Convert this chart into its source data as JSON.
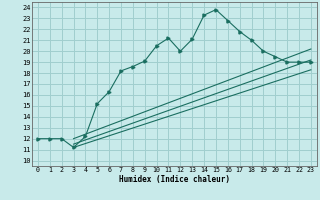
{
  "xlabel": "Humidex (Indice chaleur)",
  "bg_color": "#c8eaea",
  "grid_color": "#a0cece",
  "line_color": "#1a6e60",
  "xlim": [
    -0.5,
    23.5
  ],
  "ylim": [
    9.5,
    24.5
  ],
  "xticks": [
    0,
    1,
    2,
    3,
    4,
    5,
    6,
    7,
    8,
    9,
    10,
    11,
    12,
    13,
    14,
    15,
    16,
    17,
    18,
    19,
    20,
    21,
    22,
    23
  ],
  "yticks": [
    10,
    11,
    12,
    13,
    14,
    15,
    16,
    17,
    18,
    19,
    20,
    21,
    22,
    23,
    24
  ],
  "main_line_x": [
    0,
    1,
    2,
    3,
    4,
    5,
    6,
    7,
    8,
    9,
    10,
    11,
    12,
    13,
    14,
    15,
    16,
    17,
    18,
    19,
    20,
    21,
    22,
    23
  ],
  "main_line_y": [
    12,
    12,
    12,
    11.2,
    12.2,
    15.2,
    16.3,
    18.2,
    18.6,
    19.1,
    20.5,
    21.2,
    20.0,
    21.1,
    23.3,
    23.8,
    22.8,
    21.8,
    21.0,
    20.0,
    19.5,
    19.0,
    19.0,
    19.0
  ],
  "ref_line1_x": [
    3,
    23
  ],
  "ref_line1_y": [
    12.0,
    20.2
  ],
  "ref_line2_x": [
    3,
    23
  ],
  "ref_line2_y": [
    11.5,
    19.2
  ],
  "ref_line3_x": [
    3,
    23
  ],
  "ref_line3_y": [
    11.2,
    18.3
  ]
}
